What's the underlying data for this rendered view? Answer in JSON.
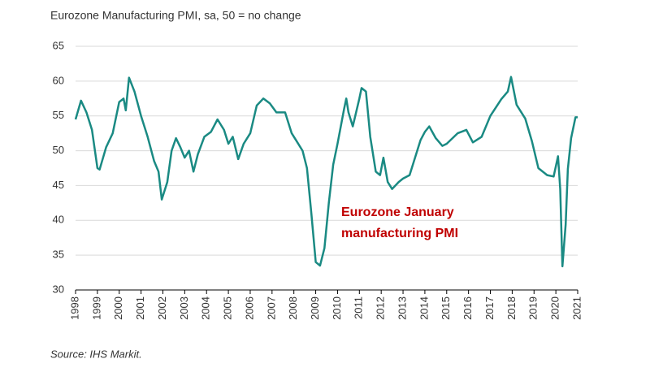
{
  "chart_data": {
    "type": "line",
    "title": "Eurozone Manufacturing PMI, sa, 50 = no change",
    "source": "Source: IHS Markit.",
    "annotation": [
      "Eurozone January",
      "manufacturing PMI"
    ],
    "annotation_color": "#c00000",
    "x": [
      1998.0,
      1998.25,
      1998.5,
      1998.75,
      1999.0,
      1999.1,
      1999.4,
      1999.7,
      2000.0,
      2000.2,
      2000.3,
      2000.45,
      2000.7,
      2001.0,
      2001.3,
      2001.6,
      2001.8,
      2001.95,
      2002.2,
      2002.4,
      2002.6,
      2002.8,
      2003.0,
      2003.2,
      2003.4,
      2003.6,
      2003.9,
      2004.2,
      2004.5,
      2004.8,
      2005.0,
      2005.2,
      2005.45,
      2005.7,
      2006.0,
      2006.3,
      2006.6,
      2006.9,
      2007.2,
      2007.6,
      2007.9,
      2008.1,
      2008.4,
      2008.6,
      2008.8,
      2009.0,
      2009.2,
      2009.4,
      2009.6,
      2009.8,
      2010.0,
      2010.3,
      2010.4,
      2010.5,
      2010.7,
      2011.0,
      2011.1,
      2011.3,
      2011.5,
      2011.75,
      2011.95,
      2012.1,
      2012.3,
      2012.5,
      2012.8,
      2013.0,
      2013.3,
      2013.5,
      2013.8,
      2014.0,
      2014.2,
      2014.5,
      2014.8,
      2015.0,
      2015.5,
      2015.9,
      2016.2,
      2016.6,
      2017.0,
      2017.5,
      2017.8,
      2017.95,
      2018.2,
      2018.6,
      2018.9,
      2019.2,
      2019.6,
      2019.9,
      2020.1,
      2020.2,
      2020.3,
      2020.45,
      2020.55,
      2020.7,
      2020.9,
      2021.0
    ],
    "series": [
      {
        "name": "Eurozone Manufacturing PMI",
        "color": "#1a8a83",
        "values": [
          54.5,
          57.2,
          55.5,
          53,
          47.5,
          47.3,
          50.5,
          52.5,
          57,
          57.5,
          55.8,
          60.5,
          58.5,
          55,
          52,
          48.5,
          47,
          43,
          45.5,
          50,
          51.8,
          50.5,
          49,
          50,
          47,
          49.5,
          52,
          52.7,
          54.5,
          53,
          51,
          52,
          48.8,
          51,
          52.5,
          56.5,
          57.5,
          56.8,
          55.5,
          55.5,
          52.5,
          51.5,
          50,
          47.5,
          41,
          34,
          33.5,
          36,
          42.5,
          48,
          51,
          56,
          57.5,
          55.5,
          53.5,
          57.5,
          59,
          58.5,
          52,
          47,
          46.5,
          49,
          45.5,
          44.5,
          45.5,
          46,
          46.5,
          48.5,
          51.5,
          52.7,
          53.5,
          51.8,
          50.7,
          51,
          52.5,
          53,
          51.2,
          52,
          55,
          57.4,
          58.5,
          60.6,
          56.6,
          54.6,
          51.4,
          47.5,
          46.5,
          46.3,
          49.2,
          44.5,
          33.4,
          39.4,
          47.4,
          51.8,
          54.8,
          54.8
        ]
      }
    ],
    "xlim": [
      1998,
      2021
    ],
    "xticks": [
      1998,
      1999,
      2000,
      2001,
      2002,
      2003,
      2004,
      2005,
      2006,
      2007,
      2008,
      2009,
      2010,
      2011,
      2012,
      2013,
      2014,
      2015,
      2016,
      2017,
      2018,
      2019,
      2020,
      2021
    ],
    "ylim": [
      30,
      65
    ],
    "yticks": [
      30,
      35,
      40,
      45,
      50,
      55,
      60,
      65
    ],
    "grid": true
  }
}
